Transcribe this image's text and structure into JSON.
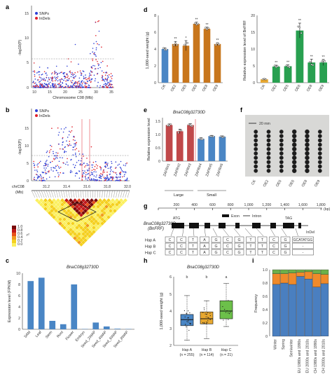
{
  "panels": {
    "a": {
      "letter": "a",
      "legend": [
        {
          "name": "SNPs",
          "color": "#2c3fd6"
        },
        {
          "name": "InDels",
          "color": "#e0202a"
        }
      ],
      "ylabel": "-log10(P)",
      "xlabel": "Chromosome C08 (Mb)",
      "yticks": [
        "0",
        "5",
        "10",
        "15"
      ],
      "xticks": [
        "10",
        "15",
        "20",
        "25",
        "30",
        "35"
      ]
    },
    "b": {
      "letter": "b",
      "legend": [
        {
          "name": "SNPs",
          "color": "#2c3fd6"
        },
        {
          "name": "InDels",
          "color": "#e0202a"
        }
      ],
      "ylabel": "-log10(P)",
      "yticks": [
        "0",
        "5",
        "10",
        "15"
      ],
      "chrom_label": "chrC08",
      "unit_label": "(Mb)",
      "xticks": [
        "31.2",
        "31.4",
        "31.6",
        "31.8",
        "32.0"
      ],
      "ld_legend": [
        "1.0",
        "0.8",
        "0.6",
        "0.4",
        "0.2",
        "0.0"
      ],
      "ld_symbol": "r²"
    },
    "c": {
      "letter": "c",
      "title": "BnaC08g32730D",
      "ylabel": "Expression level (FPKM)",
      "yticks": [
        "0",
        "2",
        "4",
        "6",
        "8",
        "10"
      ]
    },
    "d": {
      "letter": "d",
      "left_ylabel": "1,000-seed weight (g)",
      "left_yticks": [
        "0",
        "2",
        "4",
        "6",
        "8"
      ],
      "right_ylabel": "Relative expression level of BnFRF",
      "right_yticks": [
        "0",
        "5",
        "10",
        "15",
        "20"
      ],
      "sig": "**"
    },
    "e": {
      "letter": "e",
      "title": "BnaC08g32730D",
      "ylabel": "Relative expression level",
      "yticks": [
        "0",
        "0.5",
        "1.0",
        "1.5"
      ],
      "group_large": "Large",
      "group_small": "Small"
    },
    "f": {
      "letter": "f",
      "scale": "20 mm",
      "categories": [
        "CK",
        "OE2",
        "OE5",
        "OE6",
        "OE8",
        "OE9"
      ]
    },
    "g": {
      "letter": "g",
      "ruler": [
        "0",
        "200",
        "400",
        "600",
        "800",
        "1,000",
        "1,200",
        "1,400",
        "1,600",
        "1,800"
      ],
      "ruler_unit": "(bp)",
      "gene_name": "BnaC08g32730D",
      "gene_alias": "(BnFRF)",
      "atg": "ATG",
      "tag": "TAG",
      "exon_label": "Exon",
      "intron_label": "Intron",
      "indel_label": "InDel",
      "haplotypes": [
        {
          "name": "Hap A",
          "bases": [
            "C",
            "C",
            "T",
            "A",
            "G",
            "C",
            "G",
            "T",
            "T",
            "C",
            "G",
            "GCATATGG"
          ]
        },
        {
          "name": "Hap B",
          "bases": [
            "C",
            "C",
            "T",
            "A",
            "G",
            "C",
            "G",
            "T",
            "T",
            "C",
            "G",
            "-"
          ]
        },
        {
          "name": "Hap C",
          "bases": [
            "C",
            "C",
            "T",
            "A",
            "G",
            "C",
            "G",
            "T",
            "T",
            "C",
            "G",
            "-"
          ]
        }
      ]
    },
    "h": {
      "letter": "h",
      "title": "BnaC08g32730D",
      "ylabel": "1,000-seed weight (g)",
      "yticks": [
        "2",
        "3",
        "4",
        "5",
        "6"
      ],
      "letters": [
        "b",
        "b",
        "a"
      ]
    },
    "i": {
      "letter": "i",
      "ylabel": "Frequency",
      "yticks": [
        "0",
        "0.2",
        "0.4",
        "0.6",
        "0.8",
        "1.0"
      ]
    }
  },
  "chart_data": [
    {
      "panel": "c",
      "type": "bar",
      "categories": [
        "SAM",
        "Leaf",
        "Stem",
        "Root",
        "Flower",
        "Embryo",
        "Seed_2WAP",
        "Seed_4WAP",
        "Seed_6WAP",
        "Seed_8WAP"
      ],
      "values": [
        8.6,
        9.2,
        1.5,
        0.9,
        8.0,
        0.05,
        1.2,
        0.5,
        0.1,
        0.05
      ],
      "ylim": [
        0,
        10
      ],
      "color": "#4a86c5"
    },
    {
      "panel": "d-left",
      "type": "bar",
      "categories": [
        "CK",
        "OE2",
        "OE5",
        "OE6",
        "OE8",
        "OE9"
      ],
      "values": [
        4.0,
        4.6,
        4.4,
        7.0,
        6.4,
        4.6
      ],
      "errors": [
        0.15,
        0.3,
        0.6,
        0.2,
        0.2,
        0.15
      ],
      "colors": [
        "#4a86c5",
        "#c8761c",
        "#c8761c",
        "#c8761c",
        "#c8761c",
        "#c8761c"
      ],
      "sig": [
        "",
        "**",
        "*",
        "**",
        "**",
        "**"
      ],
      "ylim": [
        0,
        8
      ]
    },
    {
      "panel": "d-right",
      "type": "bar",
      "categories": [
        "CK",
        "OE2",
        "OE5",
        "OE6",
        "OE8",
        "OE9"
      ],
      "values": [
        1.0,
        4.8,
        4.9,
        15.5,
        6.0,
        6.0
      ],
      "errors": [
        0.2,
        0.4,
        0.4,
        2.2,
        1.0,
        0.9
      ],
      "colors": [
        "#e8a830",
        "#28a050",
        "#28a050",
        "#28a050",
        "#28a050",
        "#28a050"
      ],
      "sig": [
        "",
        "**",
        "**",
        "**",
        "**",
        "**"
      ],
      "ylim": [
        0,
        20
      ]
    },
    {
      "panel": "e",
      "type": "bar",
      "categories": [
        "ZAFR#1",
        "ZAFR#2",
        "ZAFR#3",
        "ZAFR#4",
        "ZAFR#5",
        "ZAFR#6"
      ],
      "values": [
        1.33,
        1.1,
        1.33,
        0.82,
        0.92,
        0.9
      ],
      "errors": [
        0.04,
        0.08,
        0.05,
        0.04,
        0.03,
        0.03
      ],
      "colors": [
        "#c0484a",
        "#c0484a",
        "#c0484a",
        "#4a86c5",
        "#4a86c5",
        "#4a86c5"
      ],
      "ylim": [
        0,
        1.6
      ]
    },
    {
      "panel": "h",
      "type": "box",
      "categories": [
        "Hap A\n(n = 255)",
        "Hap B\n(n = 114)",
        "Hap C\n(n = 21)"
      ],
      "boxes": [
        {
          "min": 2.3,
          "q1": 3.15,
          "median": 3.5,
          "q3": 3.8,
          "max": 4.9
        },
        {
          "min": 2.4,
          "q1": 3.25,
          "median": 3.55,
          "q3": 3.95,
          "max": 4.6
        },
        {
          "min": 3.1,
          "q1": 3.55,
          "median": 4.0,
          "q3": 4.6,
          "max": 5.6
        }
      ],
      "colors": [
        "#4a86c5",
        "#e8a830",
        "#6cc04a"
      ],
      "ylim": [
        2,
        6
      ]
    },
    {
      "panel": "i",
      "type": "bar",
      "categories": [
        "Winter",
        "Spring",
        "Semiwinter",
        "EU 1980s and 1990s",
        "EU 2000s and 2010s",
        "CH 1980s and 1990s",
        "CH 2000s and 2010s"
      ],
      "series": [
        {
          "values": [
            0.78,
            0.8,
            0.78,
            0.9,
            0.86,
            0.74,
            0.79
          ],
          "color": "#4a7fc0"
        },
        {
          "values": [
            0.16,
            0.14,
            0.17,
            0.06,
            0.11,
            0.2,
            0.14
          ],
          "color": "#f08a2a"
        },
        {
          "values": [
            0.06,
            0.06,
            0.05,
            0.04,
            0.03,
            0.06,
            0.07
          ],
          "color": "#6cb04a"
        }
      ],
      "ylim": [
        0,
        1.0
      ]
    }
  ]
}
